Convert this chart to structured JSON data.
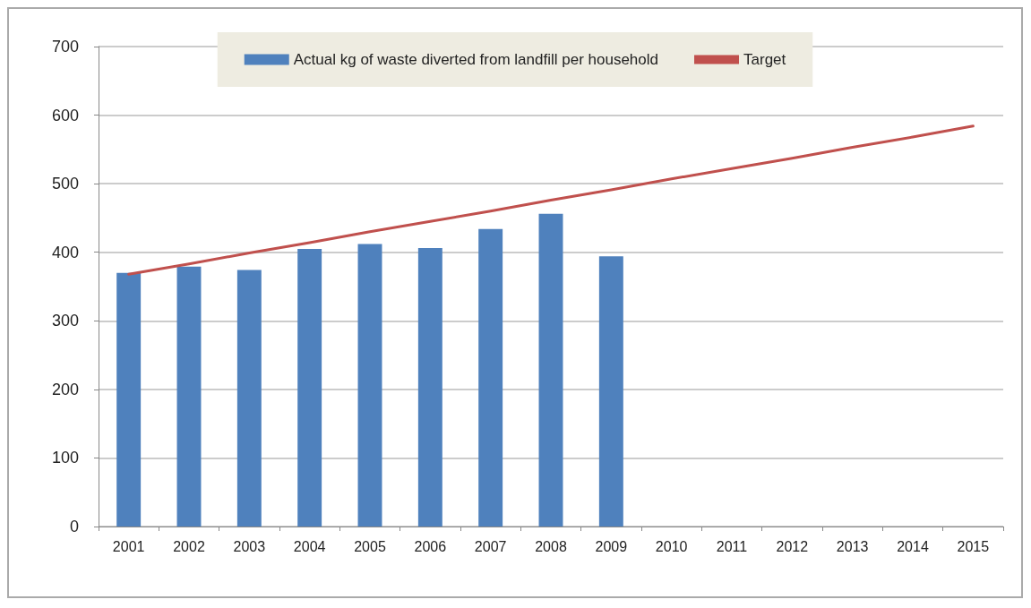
{
  "chart_data": {
    "type": "bar",
    "categories": [
      "2001",
      "2002",
      "2003",
      "2004",
      "2005",
      "2006",
      "2007",
      "2008",
      "2009",
      "2010",
      "2011",
      "2012",
      "2013",
      "2014",
      "2015"
    ],
    "series": [
      {
        "name": "Actual kg of waste diverted from landfill per household",
        "color": "#4f81bd",
        "values": [
          370,
          379,
          374,
          405,
          412,
          406,
          434,
          456,
          394,
          null,
          null,
          null,
          null,
          null,
          null
        ]
      },
      {
        "name": "Target",
        "type": "line",
        "color": "#c0504d",
        "values": [
          368,
          383,
          399,
          414,
          430,
          445,
          460,
          476,
          491,
          507,
          522,
          537,
          553,
          568,
          584
        ]
      }
    ],
    "ylim": [
      0,
      700
    ],
    "yticks": [
      0,
      100,
      200,
      300,
      400,
      500,
      600,
      700
    ],
    "grid": "y",
    "legend": "top",
    "marker": "none"
  }
}
